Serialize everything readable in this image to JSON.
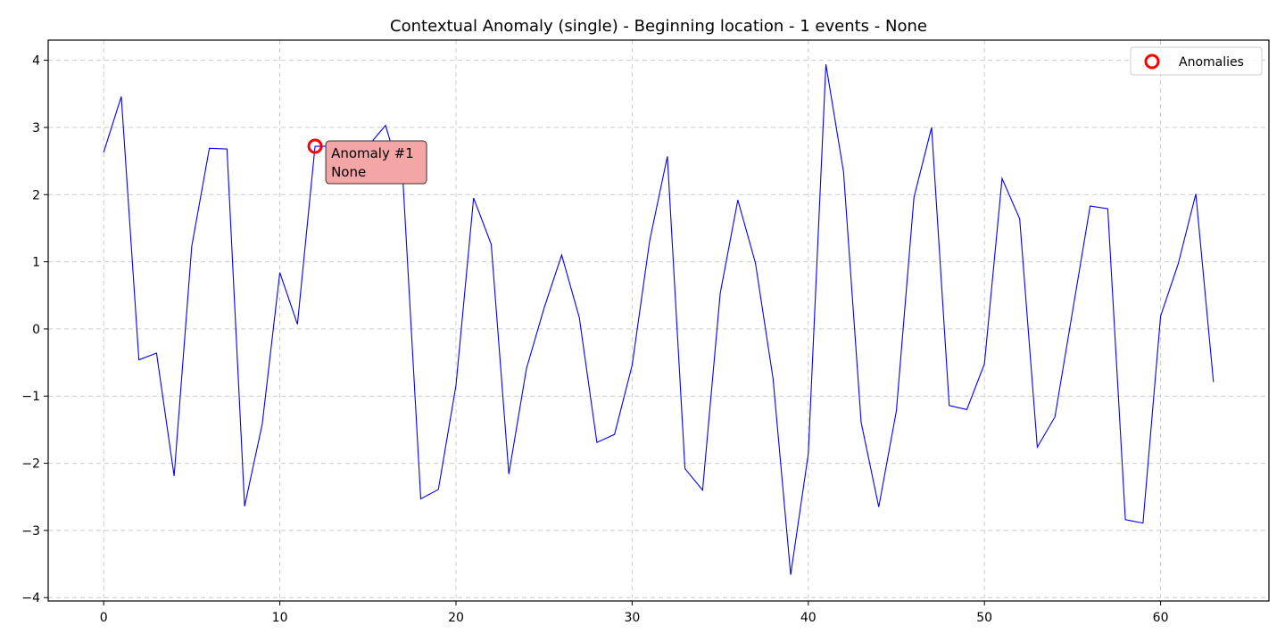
{
  "chart_data": {
    "type": "line",
    "title": "Contextual Anomaly (single) - Beginning location - 1 events - None",
    "xlabel": "",
    "ylabel": "",
    "xlim": [
      -3.15,
      66.15
    ],
    "ylim": [
      -4.05,
      4.3
    ],
    "xticks": [
      0,
      10,
      20,
      30,
      40,
      50,
      60
    ],
    "yticks": [
      4,
      3,
      2,
      1,
      0,
      -1,
      -2,
      -3,
      -4
    ],
    "ytick_labels": [
      "4",
      "3",
      "2",
      "1",
      "0",
      "−1",
      "−2",
      "−3",
      "−4"
    ],
    "grid": true,
    "legend_position": "top-right",
    "series": [
      {
        "color": "#0000ff",
        "x": [
          0,
          1,
          2,
          3,
          4,
          5,
          6,
          7,
          8,
          9,
          10,
          11,
          12,
          13,
          14,
          15,
          16,
          17,
          18,
          19,
          20,
          21,
          22,
          23,
          24,
          25,
          26,
          27,
          28,
          29,
          30,
          31,
          32,
          33,
          34,
          35,
          36,
          37,
          38,
          39,
          40,
          41,
          42,
          43,
          44,
          45,
          46,
          47,
          48,
          49,
          50,
          51,
          52,
          53,
          54,
          55,
          56,
          57,
          58,
          59,
          60,
          61,
          62,
          63
        ],
        "y": [
          2.63,
          3.46,
          -0.46,
          -0.36,
          -2.19,
          1.23,
          2.69,
          2.68,
          -2.64,
          -1.42,
          0.84,
          0.07,
          2.72,
          2.72,
          2.72,
          2.72,
          3.03,
          2.16,
          -2.53,
          -2.39,
          -0.84,
          1.95,
          1.26,
          -2.16,
          -0.59,
          0.31,
          1.1,
          0.17,
          -1.69,
          -1.57,
          -0.54,
          1.32,
          2.57,
          -2.08,
          -2.4,
          0.53,
          1.92,
          0.98,
          -0.74,
          -3.66,
          -1.86,
          3.94,
          2.34,
          -1.39,
          -2.65,
          -1.22,
          1.96,
          3.0,
          -1.14,
          -1.2,
          -0.52,
          2.24,
          1.64,
          -1.76,
          -1.31,
          0.26,
          1.83,
          1.79,
          -2.84,
          -2.89,
          0.19,
          0.97,
          2.01,
          -0.79
        ]
      },
      {
        "name": "Anomalies",
        "type": "scatter",
        "marker": "hollow-circle",
        "color": "#ff0000",
        "x": [
          12
        ],
        "y": [
          2.72
        ]
      }
    ],
    "annotations": [
      {
        "x": 12,
        "y": 2.72,
        "lines": [
          "Anomaly #1",
          "None"
        ],
        "box_color": "#f4a6a6"
      }
    ]
  }
}
